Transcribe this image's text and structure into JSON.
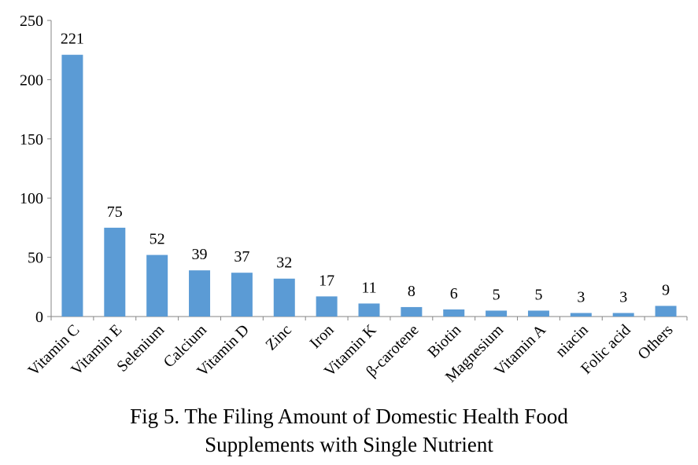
{
  "caption": {
    "line1": "Fig 5. The Filing Amount of Domestic Health Food",
    "line2": "Supplements with Single Nutrient"
  },
  "colors": {
    "bar": "#5b9bd5",
    "axis": "#868686",
    "text": "#000000"
  },
  "chart_data": {
    "type": "bar",
    "title": "",
    "xlabel": "",
    "ylabel": "",
    "ylim": [
      0,
      250
    ],
    "yticks": [
      0,
      50,
      100,
      150,
      200,
      250
    ],
    "grid": false,
    "legend": "none",
    "categories": [
      "Vitamin C",
      "Vitamin E",
      "Selenium",
      "Calcium",
      "Vitamin D",
      "Zinc",
      "Iron",
      "Vitamin K",
      "β-carotene",
      "Biotin",
      "Magnesium",
      "Vitamin A",
      "niacin",
      "Folic acid",
      "Others"
    ],
    "values": [
      221,
      75,
      52,
      39,
      37,
      32,
      17,
      11,
      8,
      6,
      5,
      5,
      3,
      3,
      9
    ],
    "data_labels": [
      "221",
      "75",
      "52",
      "39",
      "37",
      "32",
      "17",
      "11",
      "8",
      "6",
      "5",
      "5",
      "3",
      "3",
      "9"
    ]
  }
}
